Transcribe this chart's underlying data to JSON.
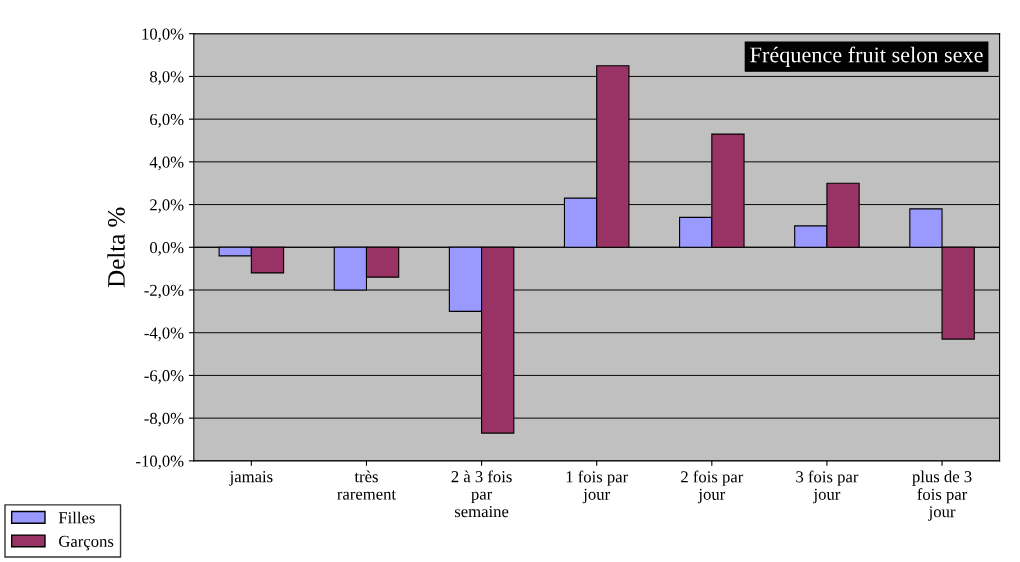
{
  "chart_data": {
    "type": "bar",
    "title": "Fréquence fruit selon sexe",
    "ylabel": "Delta %",
    "categories": [
      "jamais",
      "très\nrarement",
      "2 à 3 fois\npar\nsemaine",
      "1 fois par\njour",
      "2 fois par\njour",
      "3 fois par\njour",
      "plus de 3\nfois par\njour"
    ],
    "series": [
      {
        "name": "Filles",
        "color": "#9999ff",
        "values": [
          -0.4,
          -2.0,
          -3.0,
          2.3,
          1.4,
          1.0,
          1.8
        ]
      },
      {
        "name": "Garçons",
        "color": "#993366",
        "values": [
          -1.2,
          -1.4,
          -8.7,
          8.5,
          5.3,
          3.0,
          -4.3
        ]
      }
    ],
    "ylim": [
      -10,
      10
    ],
    "yticks": [
      {
        "value": -10,
        "label": "-10,0%"
      },
      {
        "value": -8,
        "label": "-8,0%"
      },
      {
        "value": -6,
        "label": "-6,0%"
      },
      {
        "value": -4,
        "label": "-4,0%"
      },
      {
        "value": -2,
        "label": "-2,0%"
      },
      {
        "value": 0,
        "label": "0,0%"
      },
      {
        "value": 2,
        "label": "2,0%"
      },
      {
        "value": 4,
        "label": "4,0%"
      },
      {
        "value": 6,
        "label": "6,0%"
      },
      {
        "value": 8,
        "label": "8,0%"
      },
      {
        "value": 10,
        "label": "10,0%"
      }
    ],
    "grid": "y",
    "legend": "bottom left"
  }
}
